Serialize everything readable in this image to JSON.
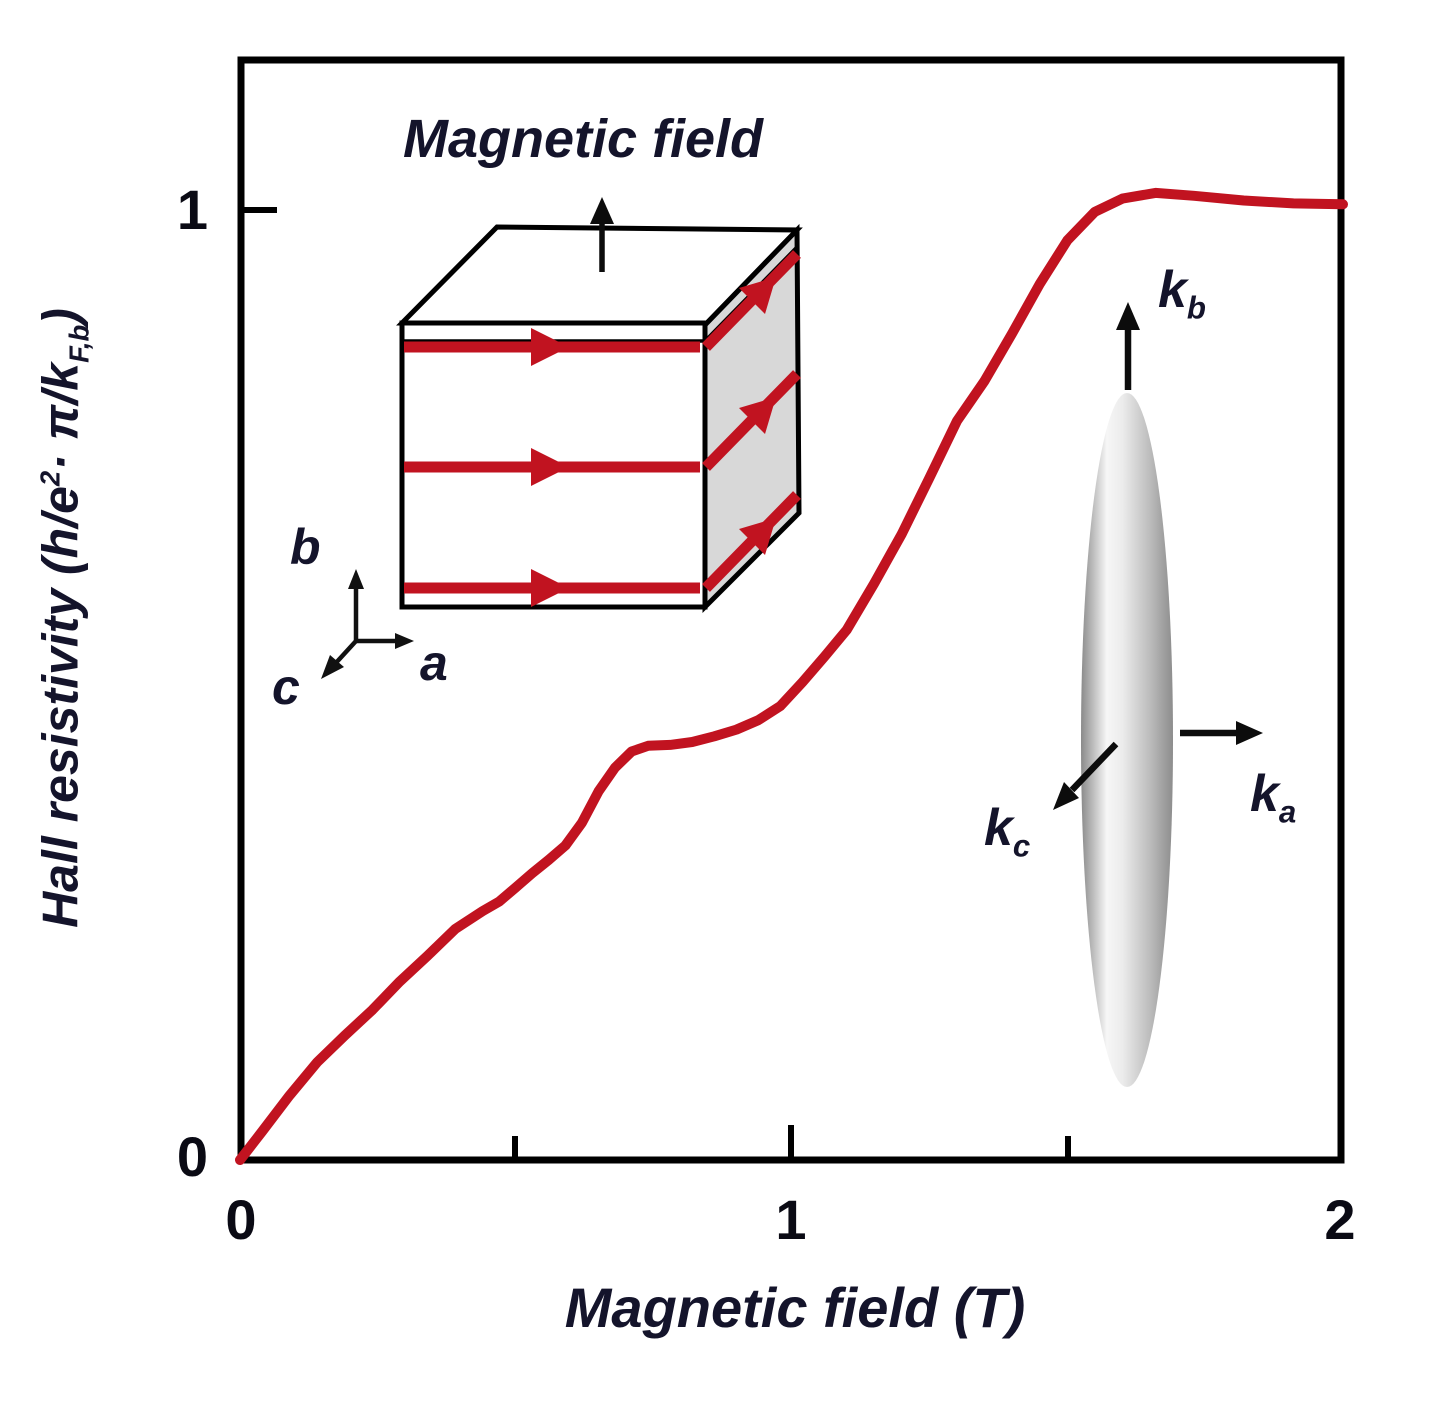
{
  "figure": {
    "inset_title": "Magnetic field",
    "x_axis": {
      "label": "Magnetic field (T)",
      "ticks": [
        {
          "value": 0,
          "label": "0"
        },
        {
          "value": 0.5,
          "label": ""
        },
        {
          "value": 1,
          "label": "1"
        },
        {
          "value": 1.5,
          "label": ""
        },
        {
          "value": 2,
          "label": "2"
        }
      ]
    },
    "y_axis": {
      "label_parts": {
        "p1": "Hall resistivity (h/e",
        "sup": "2",
        "p2": "· π/k",
        "sub": "F,b",
        "p3": ")"
      },
      "ticks": [
        {
          "value": 0,
          "label": "0"
        },
        {
          "value": 1,
          "label": "1"
        }
      ]
    },
    "crystal_axes": {
      "b": "b",
      "c": "c",
      "a": "a"
    },
    "k_labels": {
      "kb": {
        "base": "k",
        "sub": "b"
      },
      "ka": {
        "base": "k",
        "sub": "a"
      },
      "kc": {
        "base": "k",
        "sub": "c"
      }
    },
    "colors": {
      "curve": "#c11320",
      "arrow_red": "#c11320",
      "cube_side": "#d8d8d8",
      "axis": "#000000",
      "text": "#14142b"
    }
  },
  "chart_data": {
    "type": "line",
    "title": "",
    "xlabel": "Magnetic field (T)",
    "ylabel": "Hall resistivity (h/e^2 · π/k_F,b)",
    "xlim": [
      0,
      2
    ],
    "ylim": [
      0,
      1.16
    ],
    "x_ticks": [
      0,
      1,
      2
    ],
    "y_ticks": [
      0,
      1
    ],
    "grid": false,
    "legend": "none",
    "annotations": [
      "Inset cube: electric current arrows along a-axis on stacked layers, magnetic field arrow along b-axis",
      "Inset ellipsoid: elongated Fermi surface with axes k_a, k_b, k_c"
    ],
    "series": [
      {
        "name": "Hall resistivity",
        "color": "#c11320",
        "points": [
          [
            0.0,
            0.0
          ],
          [
            0.04,
            0.03
          ],
          [
            0.09,
            0.068
          ],
          [
            0.14,
            0.103
          ],
          [
            0.19,
            0.131
          ],
          [
            0.24,
            0.158
          ],
          [
            0.29,
            0.188
          ],
          [
            0.34,
            0.215
          ],
          [
            0.39,
            0.243
          ],
          [
            0.44,
            0.262
          ],
          [
            0.47,
            0.272
          ],
          [
            0.5,
            0.287
          ],
          [
            0.53,
            0.302
          ],
          [
            0.56,
            0.316
          ],
          [
            0.59,
            0.331
          ],
          [
            0.62,
            0.355
          ],
          [
            0.65,
            0.388
          ],
          [
            0.68,
            0.413
          ],
          [
            0.71,
            0.43
          ],
          [
            0.74,
            0.436
          ],
          [
            0.78,
            0.437
          ],
          [
            0.82,
            0.44
          ],
          [
            0.86,
            0.446
          ],
          [
            0.9,
            0.453
          ],
          [
            0.94,
            0.463
          ],
          [
            0.98,
            0.478
          ],
          [
            1.02,
            0.503
          ],
          [
            1.06,
            0.53
          ],
          [
            1.1,
            0.558
          ],
          [
            1.15,
            0.607
          ],
          [
            1.2,
            0.659
          ],
          [
            1.25,
            0.718
          ],
          [
            1.3,
            0.778
          ],
          [
            1.35,
            0.82
          ],
          [
            1.4,
            0.87
          ],
          [
            1.45,
            0.922
          ],
          [
            1.5,
            0.968
          ],
          [
            1.55,
            0.998
          ],
          [
            1.6,
            1.012
          ],
          [
            1.66,
            1.018
          ],
          [
            1.73,
            1.015
          ],
          [
            1.82,
            1.01
          ],
          [
            1.91,
            1.007
          ],
          [
            2.0,
            1.006
          ]
        ]
      }
    ]
  }
}
